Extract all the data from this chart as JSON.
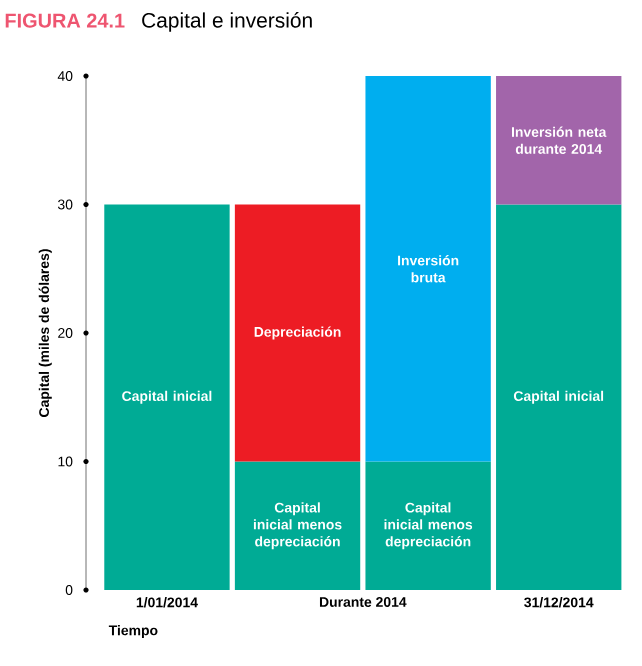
{
  "chart_data": {
    "type": "bar",
    "title": "Capital e inversión",
    "xlabel": "Tiempo",
    "ylabel": "Capital (miles de dólares)",
    "categories": [
      "1/01/2014",
      null,
      null,
      "31/12/2014"
    ],
    "series": [
      {
        "name": "Capital inicial",
        "color": "#00ab95",
        "values": [
          30,
          null,
          null,
          30
        ]
      },
      {
        "name": "Capital inicial menos depreciación",
        "color": "#00ab95",
        "values": [
          null,
          10,
          10,
          null
        ]
      },
      {
        "name": "Depreciación",
        "color": "#ed1c24",
        "values": [
          null,
          20,
          null,
          null
        ]
      },
      {
        "name": "Inversión bruta",
        "color": "#00aeef",
        "values": [
          null,
          null,
          30,
          null
        ]
      },
      {
        "name": "Inversión neta durante 2014",
        "color": "#a265aa",
        "values": [
          null,
          null,
          null,
          10
        ]
      }
    ],
    "stacked": true,
    "ylim": [
      0,
      40
    ],
    "yticks": [
      0,
      10,
      20,
      30,
      40
    ],
    "annotations": [
      "FIGURA 24.1",
      "Durante 2014"
    ]
  }
}
